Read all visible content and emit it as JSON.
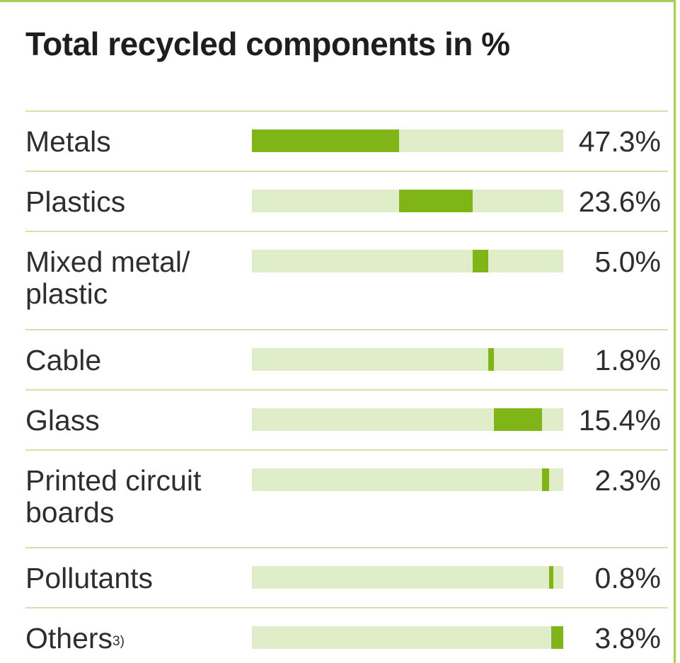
{
  "chart_data": {
    "type": "bar",
    "subtype": "stacked-single-100-percent",
    "title": "Total recycled components in %",
    "categories": [
      "Metals",
      "Plastics",
      "Mixed metal/\nplastic",
      "Cable",
      "Glass",
      "Printed circuit\nboards",
      "Pollutants",
      "Others"
    ],
    "values": [
      47.3,
      23.6,
      5.0,
      1.8,
      15.4,
      2.3,
      0.8,
      3.8
    ],
    "value_labels": [
      "47.3%",
      "23.6%",
      "5.0%",
      "1.8%",
      "15.4%",
      "2.3%",
      "0.8%",
      "3.8%"
    ],
    "footnote_marks": [
      "",
      "",
      "",
      "",
      "",
      "",
      "",
      "3)"
    ],
    "ylim": [
      0,
      100
    ],
    "colors": {
      "fill": "#7fb517",
      "track": "#dfedc8",
      "rule": "#cfe3ac",
      "frame": "#a6cf5e"
    }
  }
}
